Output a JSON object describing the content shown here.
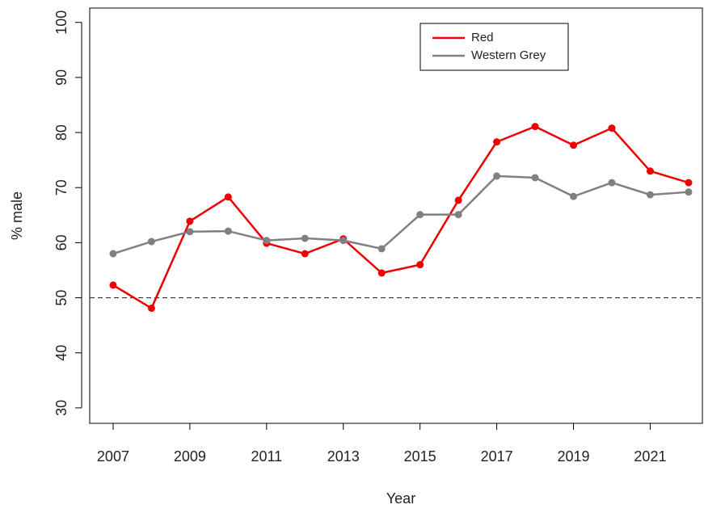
{
  "chart_data": {
    "type": "line",
    "x": [
      2007,
      2008,
      2009,
      2010,
      2011,
      2012,
      2013,
      2014,
      2015,
      2016,
      2017,
      2018,
      2019,
      2020,
      2021,
      2022
    ],
    "series": [
      {
        "name": "Red",
        "color": "#ee0000",
        "values": [
          52.3,
          48.1,
          63.9,
          68.3,
          59.9,
          58.0,
          60.7,
          54.5,
          56.0,
          67.7,
          78.3,
          81.1,
          77.7,
          80.8,
          73.0,
          70.9
        ]
      },
      {
        "name": "Western Grey",
        "color": "#808080",
        "values": [
          58.0,
          60.2,
          62.0,
          62.1,
          60.4,
          60.8,
          60.4,
          58.9,
          65.1,
          65.1,
          72.1,
          71.8,
          68.4,
          70.9,
          68.7,
          69.2
        ]
      }
    ],
    "xlabel": "Year",
    "ylabel": "% male",
    "xlim": [
      2006.39,
      2022.36
    ],
    "ylim": [
      27.2,
      102.6
    ],
    "xticks": [
      2007,
      2009,
      2011,
      2013,
      2015,
      2017,
      2019,
      2021
    ],
    "yticks": [
      30,
      40,
      50,
      60,
      70,
      80,
      90,
      100
    ],
    "hline": 50,
    "legend": "top",
    "grid": false
  }
}
